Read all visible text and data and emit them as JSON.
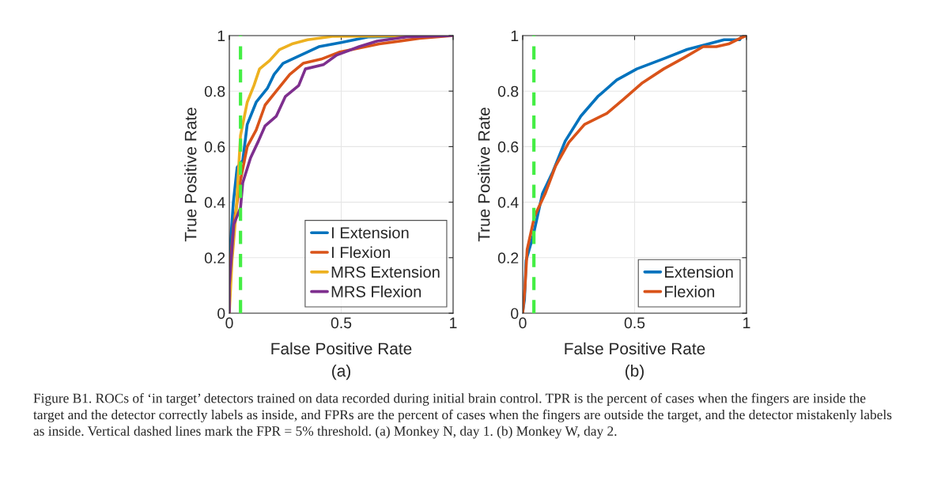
{
  "chart_data": [
    {
      "type": "line",
      "title": "(a)",
      "xlabel": "False Positive Rate",
      "ylabel": "True Positive Rate",
      "xlim": [
        0,
        1
      ],
      "ylim": [
        0,
        1
      ],
      "xticks": [
        0,
        0.5,
        1
      ],
      "yticks": [
        0,
        0.2,
        0.4,
        0.6,
        0.8,
        1
      ],
      "grid": true,
      "legend": "bottom right",
      "line_style": "solid",
      "ref_lines": [
        {
          "axis": "x",
          "value": 0.05,
          "color": "#44ee44",
          "line_style": "dashed"
        }
      ],
      "series": [
        {
          "name": "I Extension",
          "color": "#0072bd",
          "x": [
            0,
            0.018,
            0.035,
            0.06,
            0.08,
            0.12,
            0.17,
            0.2,
            0.24,
            0.32,
            0.4,
            0.5,
            0.62,
            1
          ],
          "values": [
            0.19,
            0.4,
            0.525,
            0.55,
            0.68,
            0.76,
            0.81,
            0.86,
            0.9,
            0.93,
            0.96,
            0.975,
            0.995,
            1
          ]
        },
        {
          "name": "I Flexion",
          "color": "#d95319",
          "x": [
            0,
            0.02,
            0.05,
            0.08,
            0.12,
            0.16,
            0.21,
            0.27,
            0.33,
            0.41,
            0.49,
            0.67,
            0.85,
            1
          ],
          "values": [
            0.14,
            0.32,
            0.48,
            0.6,
            0.66,
            0.75,
            0.8,
            0.86,
            0.9,
            0.915,
            0.94,
            0.97,
            0.99,
            1
          ]
        },
        {
          "name": "MRS Extension",
          "color": "#edb120",
          "x": [
            0,
            0.012,
            0.03,
            0.05,
            0.08,
            0.11,
            0.135,
            0.18,
            0.225,
            0.28,
            0.35,
            0.46,
            1
          ],
          "values": [
            0,
            0.19,
            0.36,
            0.64,
            0.76,
            0.82,
            0.88,
            0.91,
            0.95,
            0.97,
            0.985,
            0.997,
            1
          ]
        },
        {
          "name": "MRS Flexion",
          "color": "#7e2f8e",
          "x": [
            0,
            0,
            0.02,
            0.05,
            0.06,
            0.095,
            0.13,
            0.16,
            0.21,
            0.25,
            0.31,
            0.34,
            0.42,
            0.48,
            0.58,
            0.66,
            0.79,
            1
          ],
          "values": [
            0.005,
            0.1,
            0.32,
            0.38,
            0.47,
            0.56,
            0.62,
            0.675,
            0.71,
            0.78,
            0.82,
            0.88,
            0.895,
            0.93,
            0.96,
            0.98,
            0.995,
            1
          ]
        }
      ],
      "annotations": [
        "Figure B1. ROCs of ‘in target’ detectors trained on data recorded during initial brain control. TPR is the percent of cases when the fingers are inside the target and the detector correctly labels as inside, and FPRs are the percent of cases when the fingers are outside the target, and the detector mistakenly labels as inside. Vertical dashed lines mark the FPR = 5% threshold. (a) Monkey N, day 1. (b) Monkey W, day 2."
      ]
    },
    {
      "type": "line",
      "title": "(b)",
      "xlabel": "False Positive Rate",
      "ylabel": "True Positive Rate",
      "xlim": [
        0,
        1
      ],
      "ylim": [
        0,
        1
      ],
      "xticks": [
        0,
        0.5,
        1
      ],
      "yticks": [
        0,
        0.2,
        0.4,
        0.6,
        0.8,
        1
      ],
      "grid": true,
      "legend": "bottom right",
      "line_style": "solid",
      "ref_lines": [
        {
          "axis": "x",
          "value": 0.05,
          "color": "#44ee44",
          "line_style": "dashed"
        }
      ],
      "series": [
        {
          "name": "Extension",
          "color": "#0072bd",
          "x": [
            0,
            0.008,
            0.015,
            0.047,
            0.088,
            0.135,
            0.19,
            0.26,
            0.335,
            0.42,
            0.51,
            0.64,
            0.735,
            0.83,
            0.9,
            0.97,
            0.98,
            1
          ],
          "values": [
            0.005,
            0.05,
            0.19,
            0.28,
            0.43,
            0.51,
            0.62,
            0.71,
            0.78,
            0.84,
            0.88,
            0.92,
            0.95,
            0.97,
            0.985,
            0.985,
            1,
            1
          ]
        },
        {
          "name": "Flexion",
          "color": "#d95319",
          "x": [
            0,
            0.01,
            0.02,
            0.053,
            0.1,
            0.147,
            0.206,
            0.276,
            0.376,
            0.45,
            0.535,
            0.63,
            0.72,
            0.806,
            0.865,
            0.92,
            0.97,
            1
          ],
          "values": [
            0,
            0.09,
            0.23,
            0.35,
            0.43,
            0.53,
            0.615,
            0.68,
            0.72,
            0.77,
            0.83,
            0.88,
            0.92,
            0.96,
            0.96,
            0.97,
            0.99,
            1
          ]
        }
      ]
    }
  ]
}
